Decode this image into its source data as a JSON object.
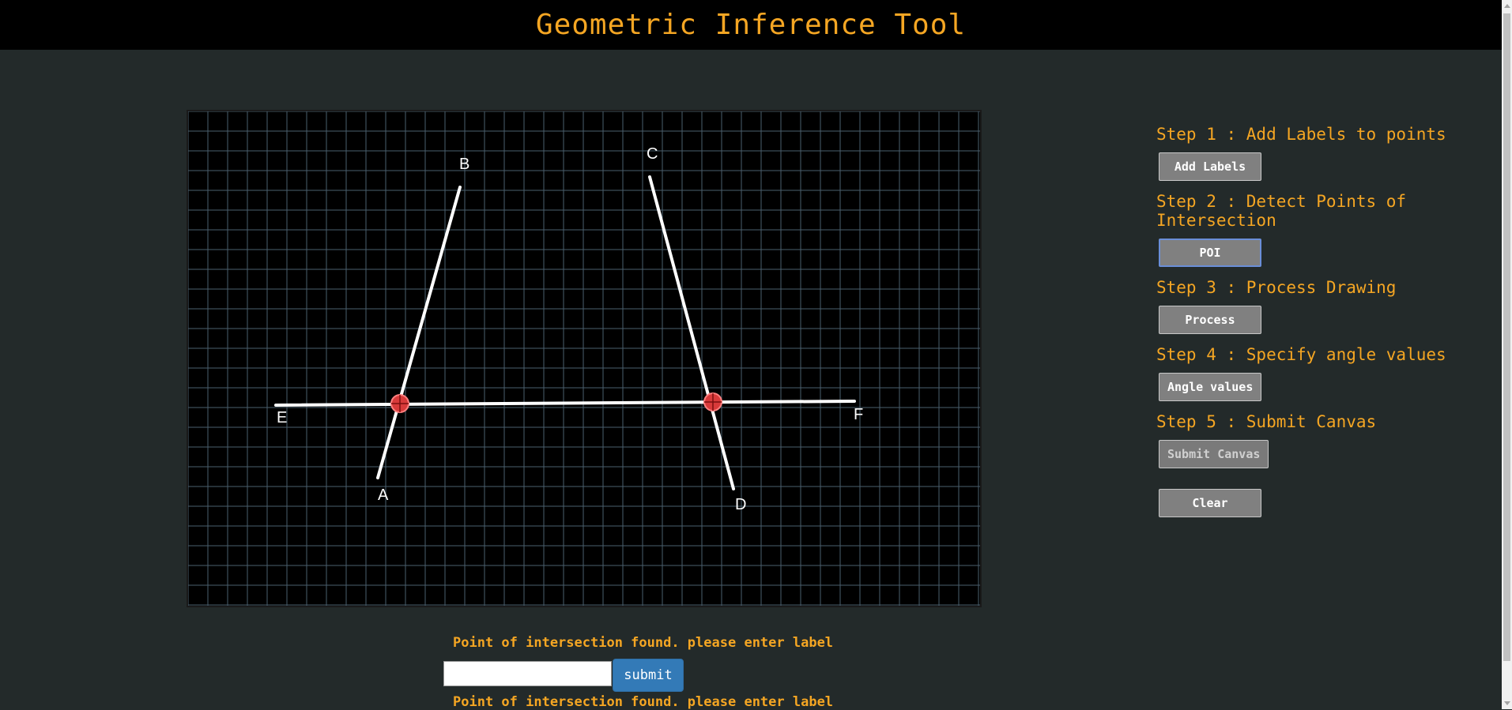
{
  "header": {
    "title": "Geometric Inference Tool"
  },
  "canvas": {
    "point_labels": [
      "A",
      "B",
      "C",
      "D",
      "E",
      "F"
    ],
    "colors": {
      "grid": "#4a5f6e",
      "line": "#ffffff",
      "intersection": "#e03030",
      "label": "#ffffff"
    }
  },
  "steps": [
    {
      "title": "Step 1 : Add Labels to points",
      "button": "Add Labels"
    },
    {
      "title": "Step 2 : Detect Points of Intersection",
      "button": "POI"
    },
    {
      "title": "Step 3 : Process Drawing",
      "button": "Process"
    },
    {
      "title": "Step 4 : Specify angle values",
      "button": "Angle values"
    },
    {
      "title": "Step 5 : Submit Canvas",
      "button": "Submit Canvas"
    }
  ],
  "clear_button": "Clear",
  "prompt": {
    "message_1": "Point of intersection found. please enter label",
    "message_2": "Point of intersection found. please enter label",
    "input_value": "",
    "input_placeholder": "",
    "submit_label": "submit"
  },
  "theme": {
    "accent": "#f5a623",
    "button_bg": "#808080",
    "submit_bg": "#337ab7"
  }
}
